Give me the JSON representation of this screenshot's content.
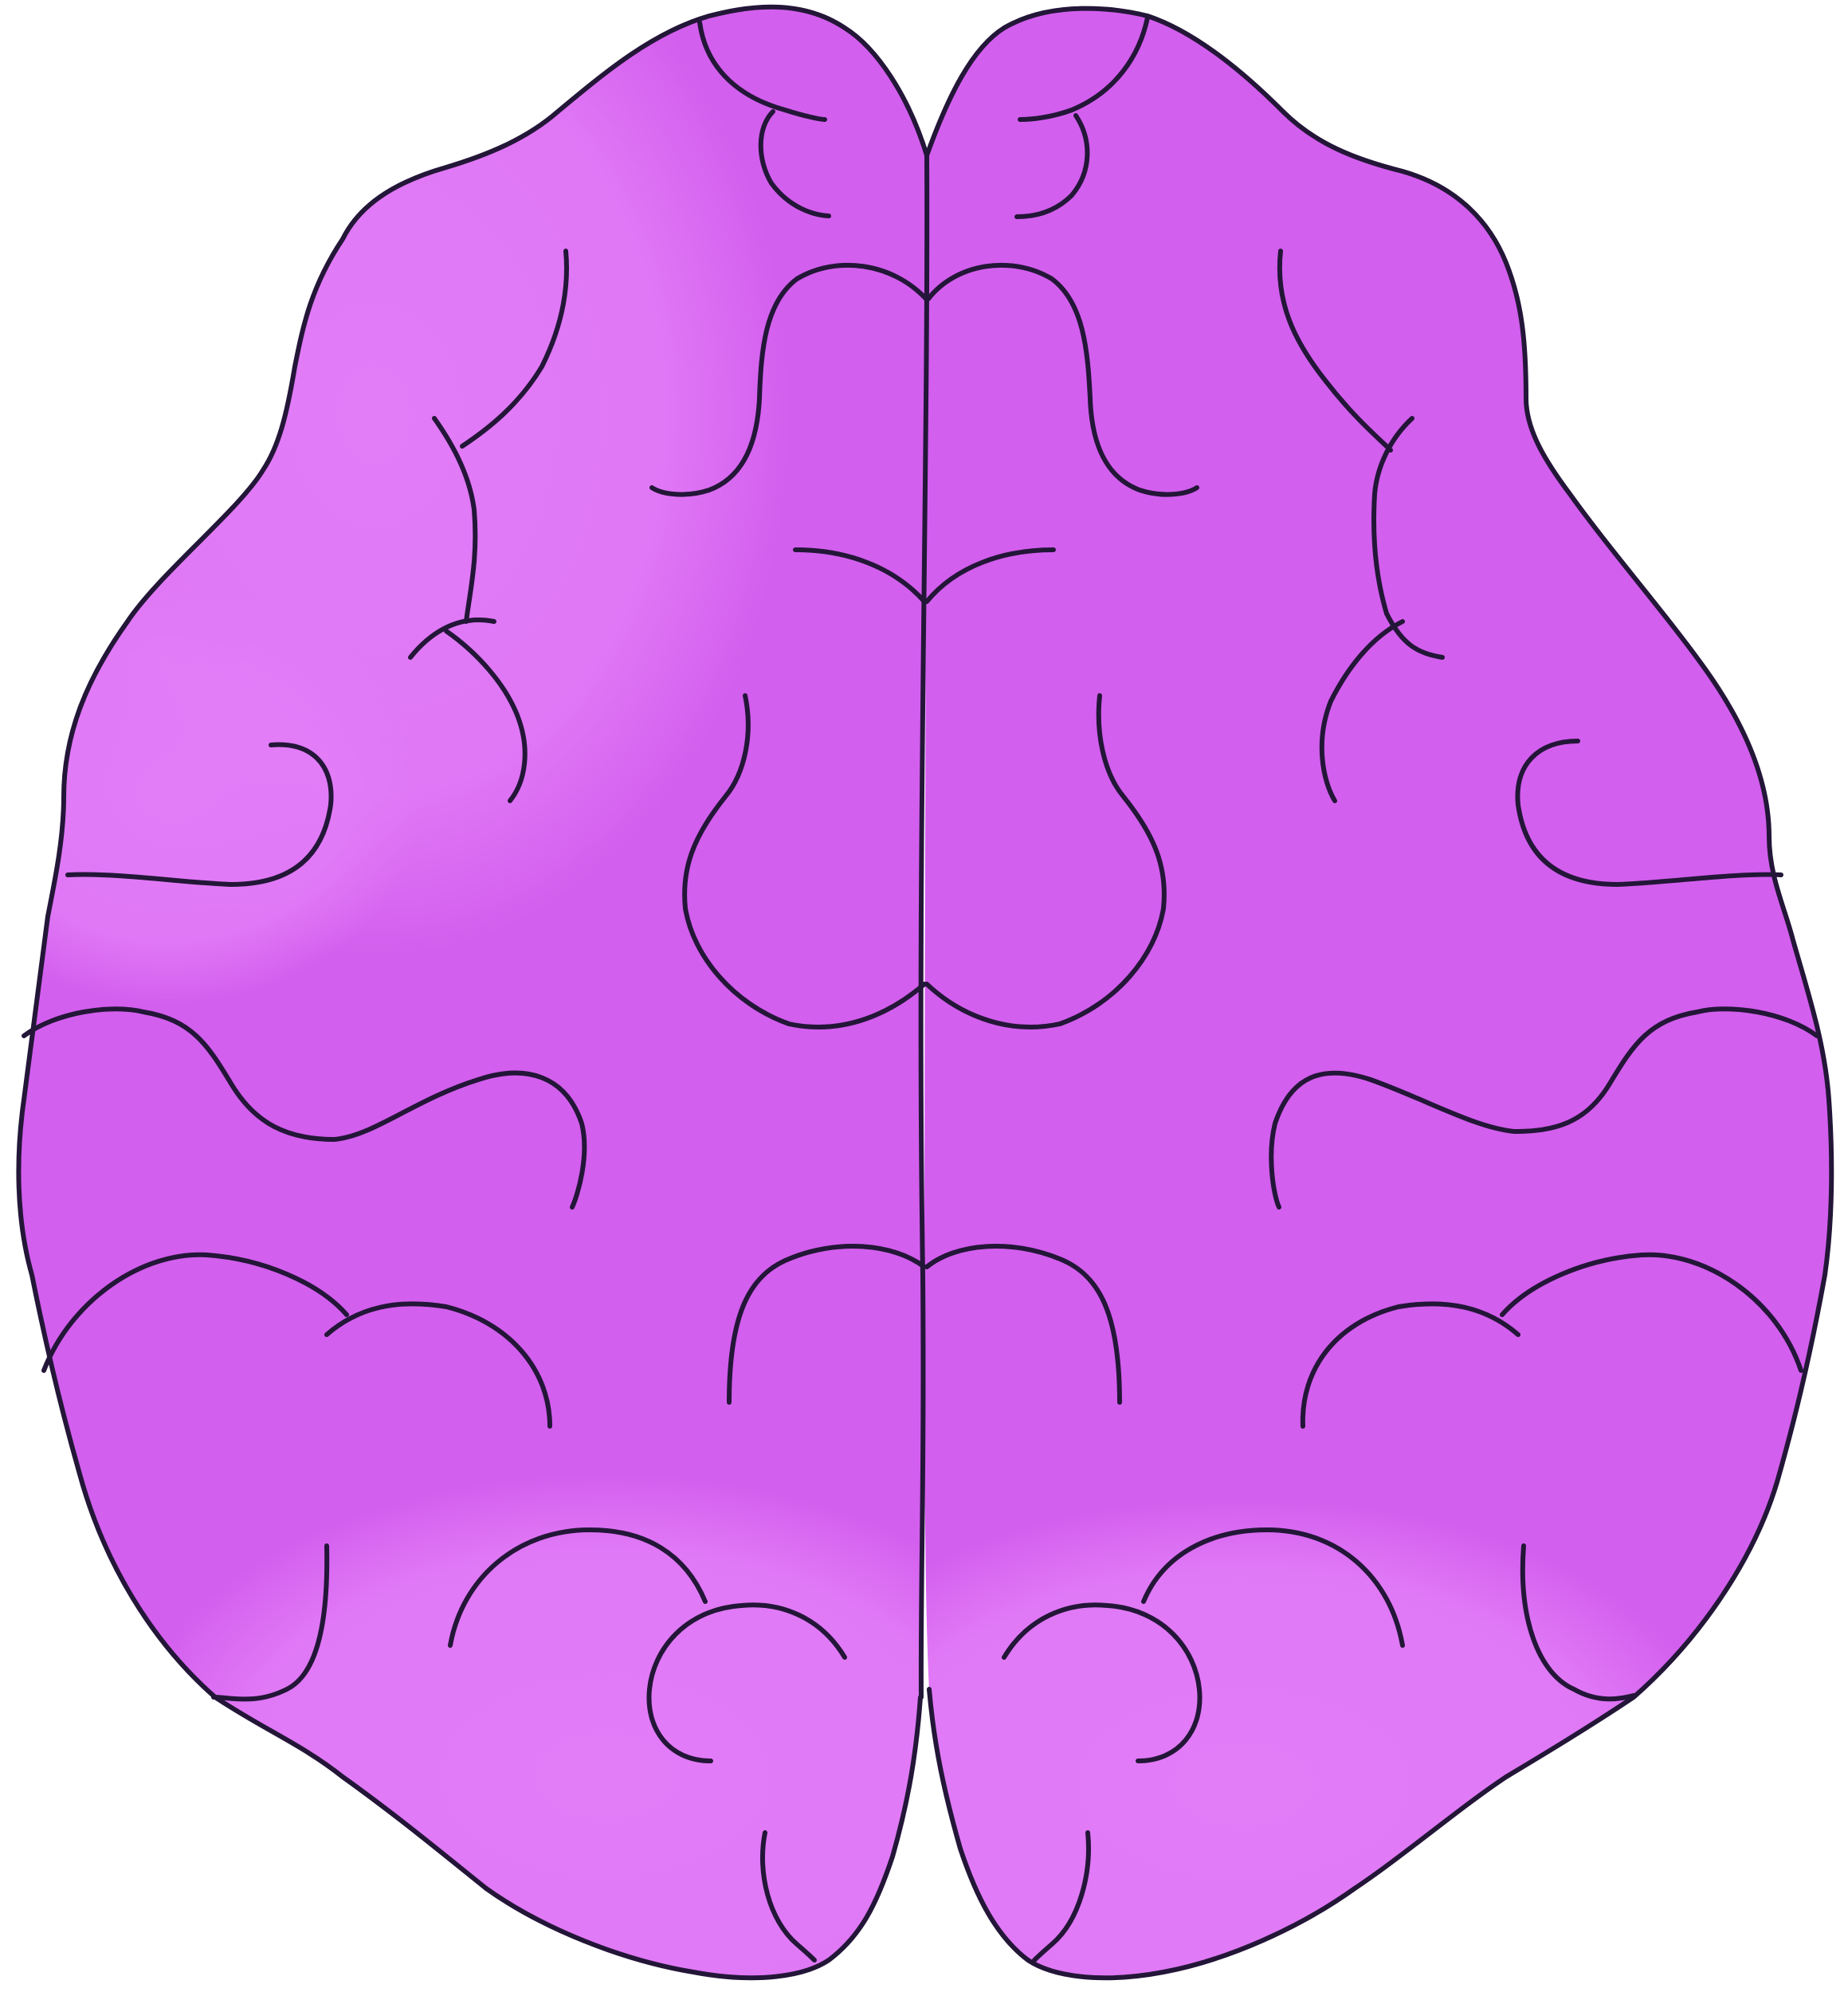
{
  "illustration": {
    "subject": "brain-icon",
    "view": "top-down",
    "colors": {
      "background": "#ffffff",
      "base_fill": "#D35FEE",
      "highlight_fill": "#E27CF7",
      "outline": "#231638"
    }
  }
}
